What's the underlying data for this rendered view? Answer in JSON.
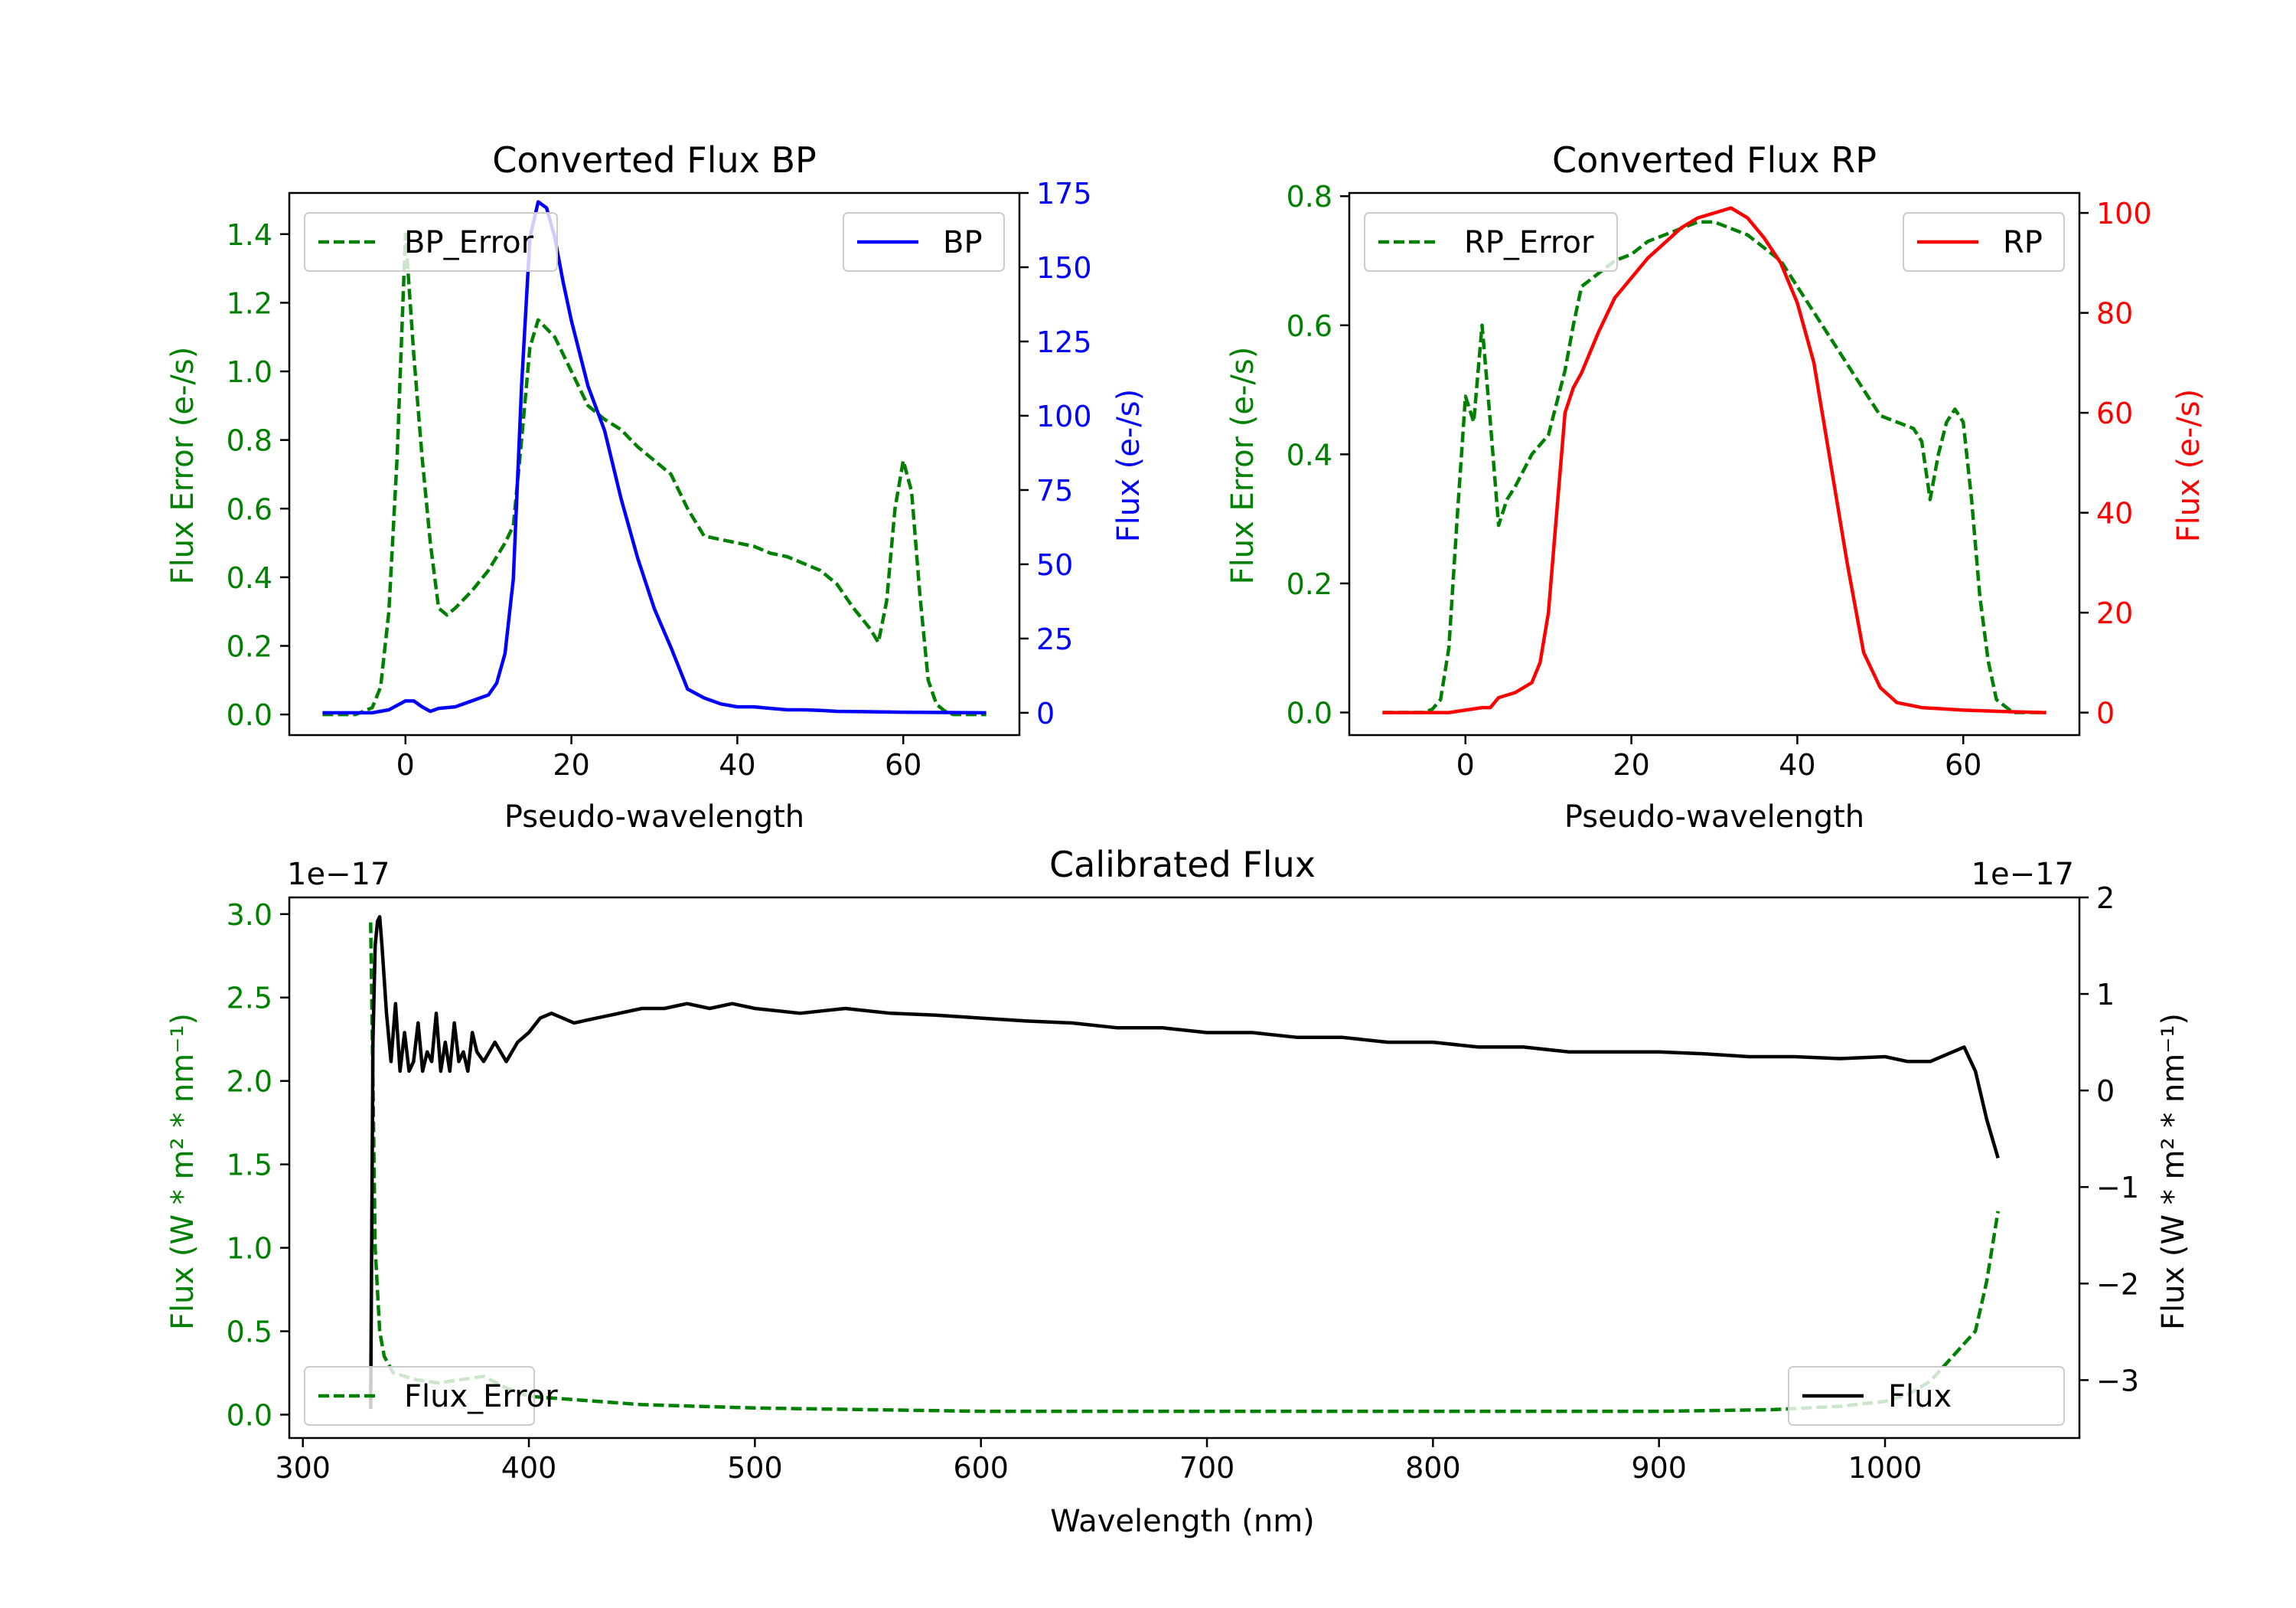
{
  "colors": {
    "green": "#008000",
    "blue": "#0000ff",
    "red": "#ff0000",
    "black": "#000000"
  },
  "chart_data": [
    {
      "id": "bp",
      "type": "line",
      "title": "Converted Flux BP",
      "xlabel": "Pseudo-wavelength",
      "ylabel_left": "Flux Error (e-/s)",
      "ylabel_right": "Flux (e-/s)",
      "xlim": [
        -14,
        74
      ],
      "ylim_left": [
        -0.06,
        1.52
      ],
      "ylim_right": [
        -7.5,
        175
      ],
      "xticks": [
        0,
        20,
        40,
        60
      ],
      "yticks_left": [
        0.0,
        0.2,
        0.4,
        0.6,
        0.8,
        1.0,
        1.2,
        1.4
      ],
      "yticks_right": [
        0,
        25,
        50,
        75,
        100,
        125,
        150,
        175
      ],
      "legend_left": "top-left",
      "legend_right": "top-right",
      "series": [
        {
          "name": "BP_Error",
          "axis": "left",
          "style": "dashed",
          "color": "#008000",
          "x": [
            -10,
            -6,
            -4,
            -3,
            -2,
            -1,
            0,
            1,
            2,
            3,
            4,
            5,
            6,
            8,
            10,
            12,
            13,
            14,
            15,
            16,
            18,
            20,
            22,
            24,
            26,
            28,
            30,
            32,
            34,
            36,
            38,
            40,
            42,
            44,
            46,
            48,
            50,
            52,
            54,
            56,
            57,
            58,
            59,
            60,
            61,
            62,
            63,
            64,
            65,
            66,
            68,
            70
          ],
          "y": [
            0.0,
            0.0,
            0.02,
            0.08,
            0.3,
            0.75,
            1.4,
            1.05,
            0.75,
            0.5,
            0.31,
            0.29,
            0.31,
            0.36,
            0.42,
            0.5,
            0.55,
            0.8,
            1.07,
            1.15,
            1.1,
            1.0,
            0.9,
            0.86,
            0.83,
            0.78,
            0.74,
            0.7,
            0.6,
            0.52,
            0.51,
            0.5,
            0.49,
            0.47,
            0.46,
            0.44,
            0.42,
            0.38,
            0.31,
            0.25,
            0.21,
            0.33,
            0.6,
            0.74,
            0.65,
            0.35,
            0.1,
            0.03,
            0.01,
            0.0,
            0.0,
            0.0
          ]
        },
        {
          "name": "BP",
          "axis": "right",
          "style": "solid",
          "color": "#0000ff",
          "x": [
            -10,
            -4,
            -2,
            0,
            1,
            2,
            3,
            4,
            6,
            8,
            10,
            11,
            12,
            13,
            14,
            15,
            16,
            17,
            18,
            19,
            20,
            22,
            24,
            26,
            28,
            30,
            32,
            34,
            36,
            38,
            40,
            42,
            44,
            46,
            48,
            50,
            52,
            55,
            60,
            65,
            70
          ],
          "y": [
            0,
            0,
            1,
            4,
            4,
            2,
            0.5,
            1.5,
            2,
            4,
            6,
            10,
            20,
            45,
            110,
            160,
            172,
            170,
            160,
            145,
            132,
            110,
            95,
            72,
            52,
            35,
            22,
            8,
            5,
            3,
            2,
            2,
            1.5,
            1,
            1,
            0.8,
            0.5,
            0.4,
            0.2,
            0.1,
            0.0
          ]
        }
      ]
    },
    {
      "id": "rp",
      "type": "line",
      "title": "Converted Flux RP",
      "xlabel": "Pseudo-wavelength",
      "ylabel_left": "Flux Error (e-/s)",
      "ylabel_right": "Flux (e-/s)",
      "xlim": [
        -14,
        74
      ],
      "ylim_left": [
        -0.035,
        0.805
      ],
      "ylim_right": [
        -4.5,
        104
      ],
      "xticks": [
        0,
        20,
        40,
        60
      ],
      "yticks_left": [
        0.0,
        0.2,
        0.4,
        0.6,
        0.8
      ],
      "yticks_right": [
        0,
        20,
        40,
        60,
        80,
        100
      ],
      "legend_left": "top-left",
      "legend_right": "top-right",
      "series": [
        {
          "name": "RP_Error",
          "axis": "left",
          "style": "dashed",
          "color": "#008000",
          "x": [
            -10,
            -5,
            -4,
            -3,
            -2,
            -1,
            0,
            1,
            2,
            3,
            4,
            5,
            6,
            8,
            10,
            12,
            13,
            14,
            16,
            18,
            20,
            22,
            24,
            26,
            28,
            30,
            32,
            34,
            36,
            38,
            40,
            42,
            44,
            46,
            48,
            50,
            52,
            54,
            55,
            56,
            57,
            58,
            59,
            60,
            61,
            62,
            63,
            64,
            65,
            66,
            68,
            70
          ],
          "y": [
            0.0,
            0.0,
            0.005,
            0.02,
            0.1,
            0.3,
            0.49,
            0.45,
            0.6,
            0.45,
            0.29,
            0.33,
            0.35,
            0.4,
            0.43,
            0.53,
            0.6,
            0.66,
            0.68,
            0.7,
            0.71,
            0.73,
            0.74,
            0.75,
            0.76,
            0.76,
            0.75,
            0.74,
            0.72,
            0.7,
            0.66,
            0.62,
            0.58,
            0.54,
            0.5,
            0.46,
            0.45,
            0.44,
            0.42,
            0.33,
            0.4,
            0.45,
            0.47,
            0.45,
            0.33,
            0.18,
            0.08,
            0.02,
            0.01,
            0.0,
            0.0,
            0.0
          ]
        },
        {
          "name": "RP",
          "axis": "right",
          "style": "solid",
          "color": "#ff0000",
          "x": [
            -10,
            -2,
            0,
            2,
            3,
            4,
            6,
            8,
            9,
            10,
            11,
            12,
            13,
            14,
            16,
            18,
            20,
            22,
            24,
            26,
            28,
            30,
            32,
            34,
            36,
            38,
            40,
            42,
            44,
            46,
            48,
            50,
            52,
            55,
            60,
            65,
            70
          ],
          "y": [
            0,
            0,
            0.5,
            1,
            1,
            3,
            4,
            6,
            10,
            20,
            40,
            60,
            65,
            68,
            76,
            83,
            87,
            91,
            94,
            97,
            99,
            100,
            101,
            99,
            95,
            90,
            82,
            70,
            50,
            30,
            12,
            5,
            2,
            1,
            0.5,
            0.2,
            0.0
          ]
        }
      ]
    },
    {
      "id": "cal",
      "type": "line",
      "title": "Calibrated Flux",
      "xlabel": "Wavelength (nm)",
      "ylabel_left": "Flux (W * m² * nm⁻¹)",
      "ylabel_right": "Flux (W * m² * nm⁻¹)",
      "offset_left": "1e−17",
      "offset_right": "1e−17",
      "xlim": [
        294,
        1086
      ],
      "ylim_left": [
        -0.14,
        3.1
      ],
      "ylim_right": [
        -3.6,
        2.0
      ],
      "xticks": [
        300,
        400,
        500,
        600,
        700,
        800,
        900,
        1000
      ],
      "yticks_left": [
        0.0,
        0.5,
        1.0,
        1.5,
        2.0,
        2.5,
        3.0
      ],
      "yticks_right": [
        -3,
        -2,
        -1,
        0,
        1,
        2
      ],
      "legend_left": "bottom-left",
      "legend_right": "bottom-right",
      "series": [
        {
          "name": "Flux_Error",
          "axis": "left",
          "style": "dashed",
          "color": "#008000",
          "x": [
            330,
            331,
            332,
            334,
            336,
            340,
            350,
            360,
            380,
            390,
            400,
            420,
            450,
            500,
            600,
            700,
            800,
            900,
            950,
            980,
            1000,
            1010,
            1020,
            1030,
            1040,
            1045,
            1050
          ],
          "y": [
            2.95,
            2.0,
            1.0,
            0.5,
            0.35,
            0.25,
            0.21,
            0.19,
            0.23,
            0.16,
            0.11,
            0.09,
            0.06,
            0.04,
            0.02,
            0.02,
            0.02,
            0.02,
            0.03,
            0.05,
            0.08,
            0.12,
            0.2,
            0.35,
            0.5,
            0.8,
            1.22
          ]
        },
        {
          "name": "Flux",
          "axis": "right",
          "style": "solid",
          "color": "#000000",
          "x": [
            330,
            331,
            332,
            333,
            334,
            335,
            337,
            339,
            341,
            343,
            345,
            347,
            349,
            351,
            353,
            355,
            357,
            359,
            361,
            363,
            365,
            367,
            369,
            371,
            373,
            375,
            377,
            380,
            385,
            390,
            395,
            400,
            405,
            410,
            420,
            430,
            440,
            450,
            460,
            470,
            480,
            490,
            500,
            520,
            540,
            560,
            580,
            600,
            620,
            640,
            660,
            680,
            700,
            720,
            740,
            760,
            780,
            800,
            820,
            840,
            860,
            880,
            900,
            920,
            940,
            960,
            980,
            1000,
            1010,
            1020,
            1030,
            1035,
            1040,
            1045,
            1050
          ],
          "y": [
            -3.3,
            0.5,
            1.5,
            1.75,
            1.8,
            1.5,
            0.8,
            0.3,
            0.9,
            0.2,
            0.6,
            0.2,
            0.3,
            0.7,
            0.2,
            0.4,
            0.3,
            0.8,
            0.2,
            0.5,
            0.2,
            0.7,
            0.3,
            0.4,
            0.2,
            0.6,
            0.4,
            0.3,
            0.5,
            0.3,
            0.5,
            0.6,
            0.75,
            0.8,
            0.7,
            0.75,
            0.8,
            0.85,
            0.85,
            0.9,
            0.85,
            0.9,
            0.85,
            0.8,
            0.85,
            0.8,
            0.78,
            0.75,
            0.72,
            0.7,
            0.65,
            0.65,
            0.6,
            0.6,
            0.55,
            0.55,
            0.5,
            0.5,
            0.45,
            0.45,
            0.4,
            0.4,
            0.4,
            0.38,
            0.35,
            0.35,
            0.33,
            0.35,
            0.3,
            0.3,
            0.4,
            0.45,
            0.2,
            -0.3,
            -0.7
          ]
        }
      ]
    }
  ]
}
